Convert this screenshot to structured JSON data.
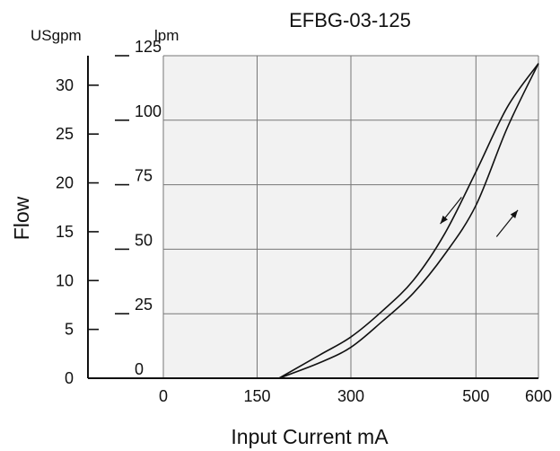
{
  "chart_data": {
    "type": "line",
    "title": "EFBG-03-125",
    "xlabel": "Input Current mA",
    "ylabel": "Flow",
    "y_units": [
      "USgpm",
      "lpm"
    ],
    "x_ticks": [
      "0",
      "150",
      "300",
      "500",
      "600"
    ],
    "x_tick_values": [
      0,
      150,
      300,
      500,
      600
    ],
    "xlim": [
      0,
      600
    ],
    "y_lpm_ticks": [
      "0",
      "25",
      "50",
      "75",
      "100",
      "125"
    ],
    "y_lpm_tick_values": [
      0,
      25,
      50,
      75,
      100,
      125
    ],
    "y_usgpm_ticks": [
      "0",
      "5",
      "10",
      "15",
      "20",
      "25",
      "30"
    ],
    "y_usgpm_tick_values": [
      0,
      5,
      10,
      15,
      20,
      25,
      30
    ],
    "ylim_lpm": [
      0,
      125
    ],
    "grid": true,
    "plot_background": "#f2f2f2",
    "line_color": "#111111",
    "series": [
      {
        "x": [
          185,
          250,
          300,
          350,
          400,
          450,
          500,
          550,
          600
        ],
        "y": [
          0,
          9,
          16,
          26,
          38,
          56,
          80,
          105,
          122
        ]
      },
      {
        "x": [
          185,
          250,
          300,
          350,
          400,
          450,
          500,
          550,
          600
        ],
        "y": [
          0,
          6,
          12,
          22,
          33,
          48,
          67,
          97,
          122
        ]
      }
    ],
    "annotations": [
      {
        "type": "arrow",
        "direction": "down-left",
        "x": 460,
        "y": 65
      },
      {
        "type": "arrow",
        "direction": "up-right",
        "x": 550,
        "y": 60
      }
    ]
  }
}
